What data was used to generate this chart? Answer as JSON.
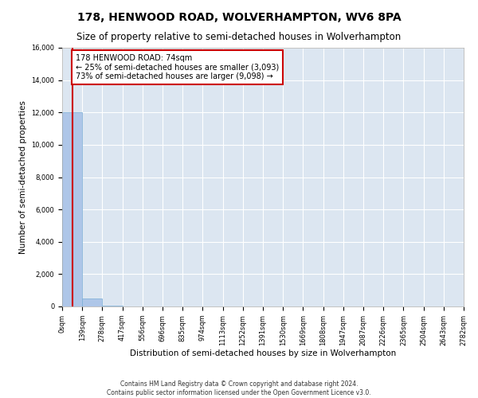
{
  "title": "178, HENWOOD ROAD, WOLVERHAMPTON, WV6 8PA",
  "subtitle": "Size of property relative to semi-detached houses in Wolverhampton",
  "xlabel": "Distribution of semi-detached houses by size in Wolverhampton",
  "ylabel": "Number of semi-detached properties",
  "footnote1": "Contains HM Land Registry data © Crown copyright and database right 2024.",
  "footnote2": "Contains public sector information licensed under the Open Government Licence v3.0.",
  "bin_edges": [
    0,
    139,
    278,
    417,
    556,
    696,
    835,
    974,
    1113,
    1252,
    1391,
    1530,
    1669,
    1808,
    1947,
    2087,
    2226,
    2365,
    2504,
    2643,
    2782
  ],
  "bar_heights": [
    12000,
    480,
    30,
    10,
    5,
    3,
    2,
    2,
    1,
    1,
    1,
    1,
    1,
    0,
    0,
    0,
    0,
    0,
    0,
    0
  ],
  "bar_color": "#aec6e8",
  "bar_edgecolor": "#7aaed6",
  "property_size": 74,
  "property_line_color": "#cc0000",
  "annotation_line1": "178 HENWOOD ROAD: 74sqm",
  "annotation_line2": "← 25% of semi-detached houses are smaller (3,093)",
  "annotation_line3": "73% of semi-detached houses are larger (9,098) →",
  "annotation_box_color": "#cc0000",
  "ylim": [
    0,
    16000
  ],
  "yticks": [
    0,
    2000,
    4000,
    6000,
    8000,
    10000,
    12000,
    14000,
    16000
  ],
  "xtick_labels": [
    "0sqm",
    "139sqm",
    "278sqm",
    "417sqm",
    "556sqm",
    "696sqm",
    "835sqm",
    "974sqm",
    "1113sqm",
    "1252sqm",
    "1391sqm",
    "1530sqm",
    "1669sqm",
    "1808sqm",
    "1947sqm",
    "2087sqm",
    "2226sqm",
    "2365sqm",
    "2504sqm",
    "2643sqm",
    "2782sqm"
  ],
  "bg_color": "#dce6f1",
  "fig_bg_color": "#ffffff",
  "grid_color": "#ffffff",
  "title_fontsize": 10,
  "subtitle_fontsize": 8.5,
  "axis_label_fontsize": 7.5,
  "tick_fontsize": 6,
  "annotation_fontsize": 7,
  "footnote_fontsize": 5.5
}
